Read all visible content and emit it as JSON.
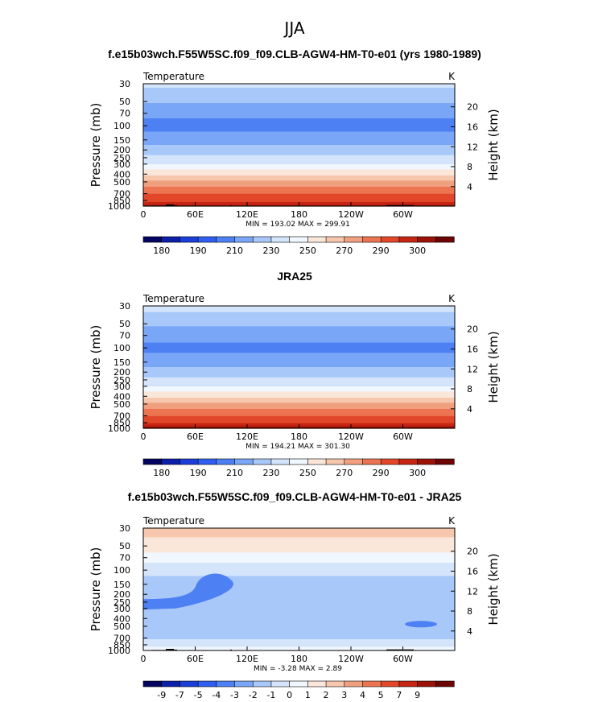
{
  "figure": {
    "season": "JJA"
  },
  "palettes": {
    "temperature": [
      "#03045f",
      "#0b1fa9",
      "#1b3ed9",
      "#2f5ef0",
      "#4d80f3",
      "#7aa6f7",
      "#a8c8fa",
      "#d3e4fb",
      "#f1f7fe",
      "#fbe6da",
      "#f6c6ad",
      "#f1a07f",
      "#ec7451",
      "#e2472a",
      "#c52512",
      "#9a1208",
      "#6c0504"
    ],
    "difference": [
      "#03045f",
      "#0b1fa9",
      "#1b3ed9",
      "#2f5ef0",
      "#4d80f3",
      "#7aa6f7",
      "#a8c8fa",
      "#d3e4fb",
      "#f1f7fe",
      "#fbe6da",
      "#f6c6ad",
      "#f1a07f",
      "#ec7451",
      "#e2472a",
      "#c52512",
      "#9a1208",
      "#6c0504"
    ]
  },
  "chart_data": [
    {
      "type": "heatmap",
      "id": "model",
      "title": "f.e15b03wch.F55W5SC.f09_f09.CLB-AGW4-HM-T0-e01 (yrs 1980-1989)",
      "left_label": "Temperature",
      "right_label": "K",
      "ylabel": "Pressure  (mb)",
      "y2label": "Height  (km)",
      "pressure_ticks": [
        "30",
        "50",
        "70",
        "100",
        "150",
        "200",
        "250",
        "300",
        "400",
        "500",
        "700",
        "850",
        "1000"
      ],
      "height_ticks": [
        "20",
        "16",
        "12",
        "8",
        "4"
      ],
      "lon_ticks": [
        "0",
        "60E",
        "120E",
        "180",
        "120W",
        "60W"
      ],
      "min_max": "MIN =  193.02   MAX =  299.91",
      "profile_levels": [
        30,
        50,
        70,
        100,
        150,
        200,
        250,
        300,
        400,
        500,
        700,
        850,
        1000
      ],
      "profile_values": [
        223,
        211,
        203,
        196,
        205,
        215,
        223,
        230,
        248,
        262,
        280,
        288,
        296
      ],
      "colorbar_labels": [
        "180",
        "190",
        "210",
        "230",
        "250",
        "270",
        "290",
        "300"
      ],
      "terrain": true
    },
    {
      "type": "heatmap",
      "id": "obs",
      "title": "JRA25",
      "left_label": "Temperature",
      "right_label": "K",
      "ylabel": "Pressure  (mb)",
      "y2label": "Height  (km)",
      "pressure_ticks": [
        "30",
        "50",
        "70",
        "100",
        "150",
        "200",
        "250",
        "300",
        "400",
        "500",
        "700",
        "850",
        "1000"
      ],
      "height_ticks": [
        "20",
        "16",
        "12",
        "8",
        "4"
      ],
      "lon_ticks": [
        "0",
        "60E",
        "120E",
        "180",
        "120W",
        "60W"
      ],
      "min_max": "MIN =  194.21   MAX =  301.30",
      "profile_levels": [
        30,
        50,
        70,
        100,
        150,
        200,
        250,
        300,
        400,
        500,
        700,
        850,
        1000
      ],
      "profile_values": [
        224,
        212,
        204,
        197,
        205,
        215,
        223,
        230,
        248,
        262,
        280,
        289,
        298
      ],
      "colorbar_labels": [
        "180",
        "190",
        "210",
        "230",
        "250",
        "270",
        "290",
        "300"
      ],
      "terrain": false
    },
    {
      "type": "heatmap",
      "id": "diff",
      "title": "f.e15b03wch.F55W5SC.f09_f09.CLB-AGW4-HM-T0-e01 - JRA25",
      "left_label": "Temperature",
      "right_label": "K",
      "ylabel": "Pressure  (mb)",
      "y2label": "Height  (km)",
      "pressure_ticks": [
        "30",
        "50",
        "70",
        "100",
        "150",
        "200",
        "250",
        "300",
        "400",
        "500",
        "700",
        "850",
        "1000"
      ],
      "height_ticks": [
        "20",
        "16",
        "12",
        "8",
        "4"
      ],
      "lon_ticks": [
        "0",
        "60E",
        "120E",
        "180",
        "120W",
        "60W"
      ],
      "min_max": "MIN =   -3.28   MAX =    2.89",
      "profile_levels": [
        30,
        50,
        70,
        100,
        150,
        200,
        250,
        300,
        400,
        500,
        700,
        850,
        1000
      ],
      "profile_values": [
        2.4,
        1.6,
        0.6,
        -0.8,
        -1.3,
        -1.5,
        -1.6,
        -1.7,
        -1.3,
        -1.1,
        -1.1,
        -0.7,
        -0.3
      ],
      "colorbar_labels": [
        "-9",
        "-7",
        "-5",
        "-4",
        "-3",
        "-2",
        "-1",
        "0",
        "1",
        "2",
        "3",
        "4",
        "5",
        "7",
        "9"
      ],
      "terrain": true
    }
  ]
}
